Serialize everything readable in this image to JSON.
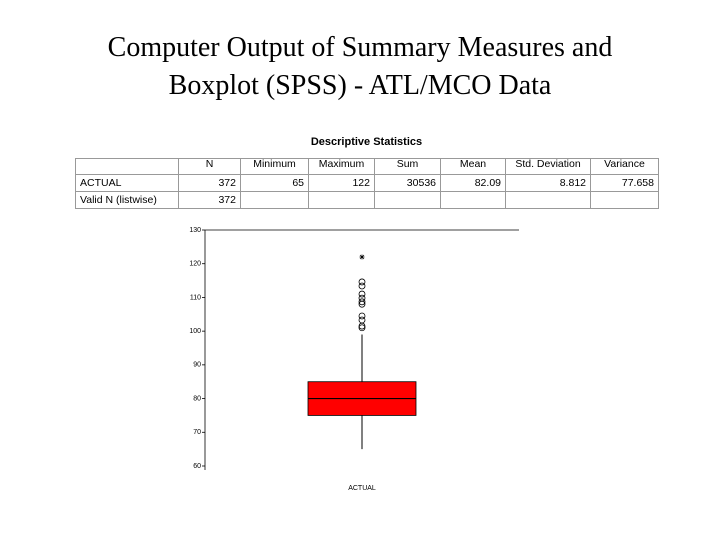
{
  "title_lines": [
    "Computer Output of Summary Measures and",
    "Boxplot (SPSS) - ATL/MCO Data"
  ],
  "table": {
    "title": "Descriptive Statistics",
    "header": [
      "N",
      "Minimum",
      "Maximum",
      "Sum",
      "Mean",
      "Std. Deviation",
      "Variance"
    ],
    "rows": [
      [
        "ACTUAL",
        "372",
        "65",
        "122",
        "30536",
        "82.09",
        "8.812",
        "77.658"
      ],
      [
        "Valid N (listwise)",
        "372"
      ]
    ]
  },
  "chart_data": {
    "type": "box",
    "categories": [
      "ACTUAL"
    ],
    "color": "#ff0000",
    "q1": [
      75
    ],
    "median": [
      80
    ],
    "q3": [
      85
    ],
    "whisker_low": [
      65
    ],
    "whisker_high": [
      99
    ],
    "outliers": [
      [
        101,
        101.5,
        103.3,
        104.5,
        108,
        108.7,
        109.8,
        111,
        113.4,
        114.6
      ]
    ],
    "extremes": [
      [
        122
      ]
    ],
    "ylim": [
      60,
      130
    ],
    "yticks": [
      60,
      70,
      80,
      90,
      100,
      110,
      120,
      130
    ]
  }
}
